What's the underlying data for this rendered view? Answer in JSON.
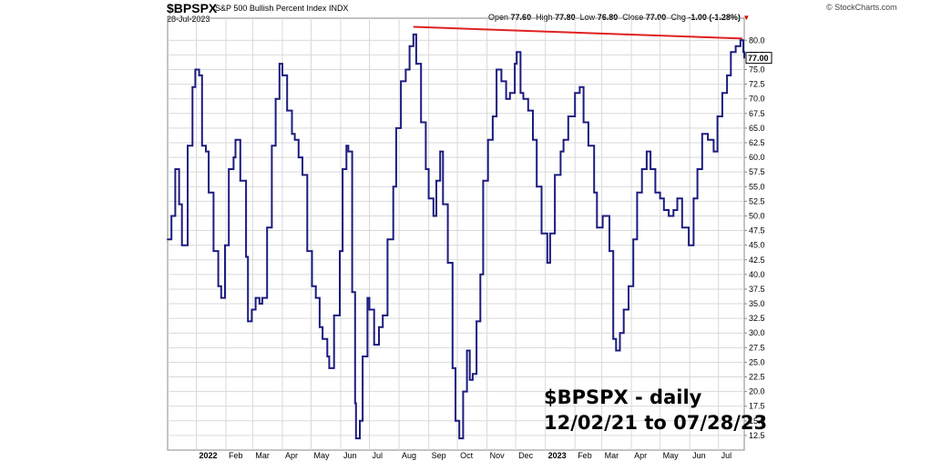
{
  "header": {
    "symbol": "$BPSPX",
    "description": "S&P 500 Bullish Percent Index",
    "exchange": "INDX",
    "date": "28-Jul-2023",
    "credit": "© StockCharts.com"
  },
  "ohlc": {
    "open_label": "Open",
    "open": "77.60",
    "high_label": "High",
    "high": "77.80",
    "low_label": "Low",
    "low": "76.80",
    "close_label": "Close",
    "close": "77.00",
    "chg_label": "Chg",
    "chg": "-1.00 (-1.28%)"
  },
  "annotation": {
    "line1": "$BPSPX - daily",
    "line2": "12/02/21 to 07/28/23"
  },
  "colors": {
    "series": "#1c1c80",
    "trendline": "#e02020",
    "grid": "#d9d9d9",
    "axis_text": "#000000"
  },
  "chart_data": {
    "type": "line",
    "title": "$BPSPX",
    "subtitle": "S&P 500 Bullish Percent Index",
    "xlabel": "",
    "ylabel": "",
    "ylim": [
      10,
      83
    ],
    "grid": true,
    "y_axis_side": "right",
    "y_ticks": [
      "12.5",
      "15.0",
      "17.5",
      "20.0",
      "22.5",
      "25.0",
      "27.5",
      "30.0",
      "32.5",
      "35.0",
      "37.5",
      "40.0",
      "42.5",
      "45.0",
      "47.5",
      "50.0",
      "52.5",
      "55.0",
      "57.5",
      "60.0",
      "62.5",
      "65.0",
      "67.5",
      "70.0",
      "72.5",
      "75.0",
      "77.5",
      "80.0"
    ],
    "x_range": [
      "2021-12-02",
      "2023-07-28"
    ],
    "x_ticks": [
      {
        "label": "2022",
        "date": "2022-01-01",
        "bold": true
      },
      {
        "label": "Feb",
        "date": "2022-02-01"
      },
      {
        "label": "Mar",
        "date": "2022-03-01"
      },
      {
        "label": "Apr",
        "date": "2022-04-01"
      },
      {
        "label": "May",
        "date": "2022-05-01"
      },
      {
        "label": "Jun",
        "date": "2022-06-01"
      },
      {
        "label": "Jul",
        "date": "2022-07-01"
      },
      {
        "label": "Aug",
        "date": "2022-08-01"
      },
      {
        "label": "Sep",
        "date": "2022-09-01"
      },
      {
        "label": "Oct",
        "date": "2022-10-01"
      },
      {
        "label": "Nov",
        "date": "2022-11-01"
      },
      {
        "label": "Dec",
        "date": "2022-12-01"
      },
      {
        "label": "2023",
        "date": "2023-01-01",
        "bold": true
      },
      {
        "label": "Feb",
        "date": "2023-02-01"
      },
      {
        "label": "Mar",
        "date": "2023-03-01"
      },
      {
        "label": "Apr",
        "date": "2023-04-01"
      },
      {
        "label": "May",
        "date": "2023-05-01"
      },
      {
        "label": "Jun",
        "date": "2023-06-01"
      },
      {
        "label": "Jul",
        "date": "2023-07-01"
      }
    ],
    "last_value_label": "77.00",
    "series": [
      {
        "name": "$BPSPX",
        "points": [
          [
            "2021-12-02",
            46
          ],
          [
            "2021-12-06",
            50
          ],
          [
            "2021-12-10",
            58
          ],
          [
            "2021-12-14",
            52
          ],
          [
            "2021-12-17",
            45
          ],
          [
            "2021-12-23",
            62
          ],
          [
            "2021-12-28",
            72
          ],
          [
            "2021-12-31",
            75
          ],
          [
            "2022-01-04",
            74
          ],
          [
            "2022-01-07",
            62
          ],
          [
            "2022-01-11",
            61
          ],
          [
            "2022-01-14",
            54
          ],
          [
            "2022-01-19",
            44
          ],
          [
            "2022-01-24",
            38
          ],
          [
            "2022-01-27",
            36
          ],
          [
            "2022-01-31",
            45
          ],
          [
            "2022-02-04",
            58
          ],
          [
            "2022-02-09",
            60
          ],
          [
            "2022-02-11",
            63
          ],
          [
            "2022-02-16",
            56
          ],
          [
            "2022-02-22",
            43
          ],
          [
            "2022-02-24",
            32
          ],
          [
            "2022-02-28",
            34
          ],
          [
            "2022-03-04",
            36
          ],
          [
            "2022-03-08",
            35
          ],
          [
            "2022-03-11",
            36
          ],
          [
            "2022-03-16",
            48
          ],
          [
            "2022-03-21",
            62
          ],
          [
            "2022-03-25",
            70
          ],
          [
            "2022-03-29",
            76
          ],
          [
            "2022-04-01",
            74
          ],
          [
            "2022-04-06",
            68
          ],
          [
            "2022-04-11",
            64
          ],
          [
            "2022-04-14",
            63
          ],
          [
            "2022-04-18",
            60
          ],
          [
            "2022-04-22",
            57
          ],
          [
            "2022-04-27",
            44
          ],
          [
            "2022-05-02",
            38
          ],
          [
            "2022-05-06",
            36
          ],
          [
            "2022-05-10",
            31
          ],
          [
            "2022-05-13",
            29
          ],
          [
            "2022-05-18",
            26
          ],
          [
            "2022-05-20",
            24
          ],
          [
            "2022-05-25",
            33
          ],
          [
            "2022-05-31",
            44
          ],
          [
            "2022-06-03",
            58
          ],
          [
            "2022-06-07",
            62
          ],
          [
            "2022-06-09",
            61
          ],
          [
            "2022-06-13",
            37
          ],
          [
            "2022-06-16",
            18
          ],
          [
            "2022-06-17",
            12
          ],
          [
            "2022-06-21",
            15
          ],
          [
            "2022-06-24",
            26
          ],
          [
            "2022-06-29",
            36
          ],
          [
            "2022-07-01",
            34
          ],
          [
            "2022-07-06",
            28
          ],
          [
            "2022-07-11",
            31
          ],
          [
            "2022-07-15",
            33
          ],
          [
            "2022-07-20",
            46
          ],
          [
            "2022-07-26",
            55
          ],
          [
            "2022-07-29",
            65
          ],
          [
            "2022-08-03",
            73
          ],
          [
            "2022-08-08",
            75
          ],
          [
            "2022-08-12",
            79
          ],
          [
            "2022-08-16",
            81
          ],
          [
            "2022-08-19",
            76
          ],
          [
            "2022-08-24",
            66
          ],
          [
            "2022-08-29",
            58
          ],
          [
            "2022-09-01",
            53
          ],
          [
            "2022-09-06",
            50
          ],
          [
            "2022-09-09",
            56
          ],
          [
            "2022-09-13",
            61
          ],
          [
            "2022-09-16",
            52
          ],
          [
            "2022-09-21",
            42
          ],
          [
            "2022-09-26",
            24
          ],
          [
            "2022-09-29",
            15
          ],
          [
            "2022-10-03",
            12
          ],
          [
            "2022-10-07",
            20
          ],
          [
            "2022-10-11",
            27
          ],
          [
            "2022-10-14",
            22
          ],
          [
            "2022-10-17",
            23
          ],
          [
            "2022-10-21",
            32
          ],
          [
            "2022-10-25",
            40
          ],
          [
            "2022-10-28",
            56
          ],
          [
            "2022-11-02",
            63
          ],
          [
            "2022-11-07",
            67
          ],
          [
            "2022-11-11",
            75
          ],
          [
            "2022-11-16",
            73
          ],
          [
            "2022-11-21",
            70
          ],
          [
            "2022-11-25",
            71
          ],
          [
            "2022-11-30",
            76
          ],
          [
            "2022-12-02",
            78
          ],
          [
            "2022-12-06",
            71
          ],
          [
            "2022-12-09",
            70
          ],
          [
            "2022-12-14",
            68
          ],
          [
            "2022-12-19",
            63
          ],
          [
            "2022-12-23",
            55
          ],
          [
            "2022-12-28",
            47
          ],
          [
            "2023-01-03",
            42
          ],
          [
            "2023-01-06",
            47
          ],
          [
            "2023-01-11",
            57
          ],
          [
            "2023-01-17",
            61
          ],
          [
            "2023-01-20",
            63
          ],
          [
            "2023-01-25",
            67
          ],
          [
            "2023-02-01",
            71
          ],
          [
            "2023-02-06",
            72
          ],
          [
            "2023-02-10",
            66
          ],
          [
            "2023-02-15",
            62
          ],
          [
            "2023-02-21",
            54
          ],
          [
            "2023-02-24",
            48
          ],
          [
            "2023-03-02",
            50
          ],
          [
            "2023-03-09",
            44
          ],
          [
            "2023-03-13",
            29
          ],
          [
            "2023-03-16",
            27
          ],
          [
            "2023-03-20",
            30
          ],
          [
            "2023-03-24",
            34
          ],
          [
            "2023-03-29",
            38
          ],
          [
            "2023-04-03",
            46
          ],
          [
            "2023-04-07",
            54
          ],
          [
            "2023-04-12",
            58
          ],
          [
            "2023-04-17",
            61
          ],
          [
            "2023-04-21",
            58
          ],
          [
            "2023-04-26",
            54
          ],
          [
            "2023-05-01",
            53
          ],
          [
            "2023-05-05",
            51
          ],
          [
            "2023-05-10",
            50
          ],
          [
            "2023-05-15",
            51
          ],
          [
            "2023-05-19",
            53
          ],
          [
            "2023-05-24",
            48
          ],
          [
            "2023-05-31",
            45
          ],
          [
            "2023-06-05",
            53
          ],
          [
            "2023-06-09",
            58
          ],
          [
            "2023-06-14",
            64
          ],
          [
            "2023-06-20",
            63
          ],
          [
            "2023-06-26",
            61
          ],
          [
            "2023-06-30",
            67
          ],
          [
            "2023-07-05",
            71
          ],
          [
            "2023-07-10",
            74
          ],
          [
            "2023-07-14",
            78
          ],
          [
            "2023-07-19",
            79
          ],
          [
            "2023-07-24",
            80
          ],
          [
            "2023-07-27",
            78
          ],
          [
            "2023-07-28",
            77
          ]
        ]
      }
    ],
    "trendline": [
      [
        "2022-08-16",
        82.3
      ],
      [
        "2023-07-26",
        80.3
      ]
    ]
  }
}
